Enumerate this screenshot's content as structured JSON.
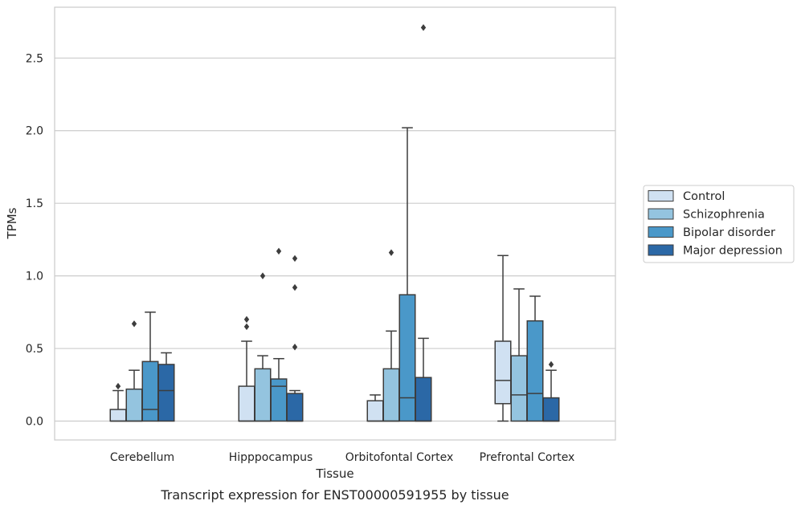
{
  "chart_data": {
    "type": "box",
    "xlabel": "Tissue",
    "ylabel": "TPMs",
    "caption": "Transcript expression for ENST00000591955 by tissue",
    "ylim": [
      -0.13,
      2.85
    ],
    "yticks": [
      "0.0",
      "0.5",
      "1.0",
      "1.5",
      "2.0",
      "2.5"
    ],
    "ytick_values": [
      0.0,
      0.5,
      1.0,
      1.5,
      2.0,
      2.5
    ],
    "grid": true,
    "legend_position": "right",
    "categories": [
      "Cerebellum",
      "Hipppocampus",
      "Orbitofontal Cortex",
      "Prefrontal Cortex"
    ],
    "series": [
      {
        "name": "Control",
        "color": "#d0e1f2",
        "boxes": [
          {
            "min": 0.0,
            "q1": 0.0,
            "median": 0.0,
            "q3": 0.08,
            "max": 0.21,
            "outliers": [
              0.24
            ]
          },
          {
            "min": 0.0,
            "q1": 0.0,
            "median": 0.0,
            "q3": 0.24,
            "max": 0.55,
            "outliers": [
              0.65,
              0.7
            ]
          },
          {
            "min": 0.0,
            "q1": 0.0,
            "median": 0.0,
            "q3": 0.14,
            "max": 0.18,
            "outliers": []
          },
          {
            "min": 0.0,
            "q1": 0.12,
            "median": 0.28,
            "q3": 0.55,
            "max": 1.14,
            "outliers": []
          }
        ]
      },
      {
        "name": "Schizophrenia",
        "color": "#94c4df",
        "boxes": [
          {
            "min": 0.0,
            "q1": 0.0,
            "median": 0.0,
            "q3": 0.22,
            "max": 0.35,
            "outliers": [
              0.67
            ]
          },
          {
            "min": 0.0,
            "q1": 0.0,
            "median": 0.0,
            "q3": 0.36,
            "max": 0.45,
            "outliers": [
              1.0
            ]
          },
          {
            "min": 0.0,
            "q1": 0.0,
            "median": 0.0,
            "q3": 0.36,
            "max": 0.62,
            "outliers": [
              1.16
            ]
          },
          {
            "min": 0.0,
            "q1": 0.0,
            "median": 0.18,
            "q3": 0.45,
            "max": 0.91,
            "outliers": []
          }
        ]
      },
      {
        "name": "Bipolar disorder",
        "color": "#4a98c9",
        "boxes": [
          {
            "min": 0.0,
            "q1": 0.0,
            "median": 0.08,
            "q3": 0.41,
            "max": 0.75,
            "outliers": []
          },
          {
            "min": 0.0,
            "q1": 0.0,
            "median": 0.24,
            "q3": 0.29,
            "max": 0.43,
            "outliers": [
              1.17
            ]
          },
          {
            "min": 0.0,
            "q1": 0.0,
            "median": 0.16,
            "q3": 0.87,
            "max": 2.02,
            "outliers": []
          },
          {
            "min": 0.0,
            "q1": 0.0,
            "median": 0.19,
            "q3": 0.69,
            "max": 0.86,
            "outliers": []
          }
        ]
      },
      {
        "name": "Major depression",
        "color": "#2b68a6",
        "boxes": [
          {
            "min": 0.0,
            "q1": 0.0,
            "median": 0.21,
            "q3": 0.39,
            "max": 0.47,
            "outliers": []
          },
          {
            "min": 0.0,
            "q1": 0.0,
            "median": 0.0,
            "q3": 0.19,
            "max": 0.21,
            "outliers": [
              0.51,
              0.92,
              1.12
            ]
          },
          {
            "min": 0.0,
            "q1": 0.0,
            "median": 0.0,
            "q3": 0.3,
            "max": 0.57,
            "outliers": [
              2.71
            ]
          },
          {
            "min": 0.0,
            "q1": 0.0,
            "median": 0.0,
            "q3": 0.16,
            "max": 0.35,
            "outliers": [
              0.39
            ]
          }
        ]
      }
    ]
  }
}
